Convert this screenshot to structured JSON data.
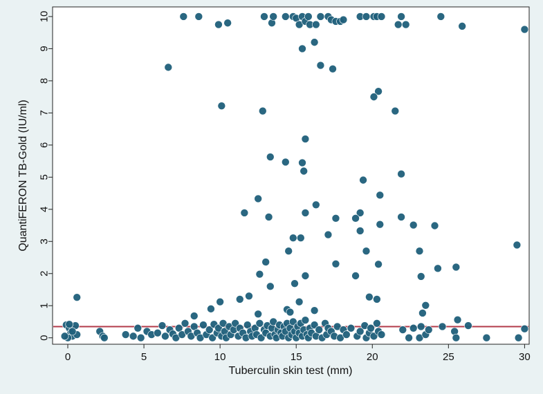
{
  "chart_data": {
    "type": "scatter",
    "title": "",
    "xlabel": "Tuberculin skin test (mm)",
    "ylabel": "QuantiFERON TB-Gold (IU/ml)",
    "xlim": [
      -1,
      30.3
    ],
    "ylim": [
      -0.2,
      10.3
    ],
    "xticks": [
      0,
      5,
      10,
      15,
      20,
      25,
      30
    ],
    "yticks": [
      0,
      1,
      2,
      3,
      4,
      5,
      6,
      7,
      8,
      9,
      10
    ],
    "reference_line": {
      "y": 0.35,
      "color": "#b23a48"
    },
    "grid": false,
    "legend": "none",
    "colors": {
      "marker": "#1f5f7a",
      "plot_bg": "#ffffff",
      "page_bg": "#eaf2f3"
    },
    "points": [
      [
        7.6,
        10.0
      ],
      [
        8.6,
        10.0
      ],
      [
        9.9,
        9.75
      ],
      [
        10.5,
        9.8
      ],
      [
        12.9,
        10.0
      ],
      [
        13.4,
        9.8
      ],
      [
        13.5,
        10.0
      ],
      [
        14.3,
        10.0
      ],
      [
        14.8,
        10.0
      ],
      [
        15.0,
        9.95
      ],
      [
        15.2,
        9.75
      ],
      [
        15.4,
        10.0
      ],
      [
        15.6,
        9.85
      ],
      [
        15.8,
        10.0
      ],
      [
        15.9,
        9.75
      ],
      [
        16.3,
        9.75
      ],
      [
        16.6,
        10.0
      ],
      [
        17.1,
        10.0
      ],
      [
        17.3,
        9.9
      ],
      [
        17.6,
        9.85
      ],
      [
        17.9,
        9.85
      ],
      [
        18.1,
        9.9
      ],
      [
        19.2,
        10.0
      ],
      [
        19.6,
        10.0
      ],
      [
        20.1,
        10.0
      ],
      [
        20.3,
        10.0
      ],
      [
        20.6,
        10.0
      ],
      [
        21.7,
        9.75
      ],
      [
        21.9,
        10.0
      ],
      [
        22.2,
        9.75
      ],
      [
        24.5,
        10.0
      ],
      [
        25.9,
        9.7
      ],
      [
        30.0,
        9.6
      ],
      [
        6.6,
        8.42
      ],
      [
        15.4,
        9.0
      ],
      [
        16.2,
        9.2
      ],
      [
        16.6,
        8.48
      ],
      [
        17.4,
        8.37
      ],
      [
        10.1,
        7.22
      ],
      [
        12.8,
        7.06
      ],
      [
        20.4,
        7.67
      ],
      [
        20.1,
        7.5
      ],
      [
        21.5,
        7.06
      ],
      [
        15.6,
        6.19
      ],
      [
        13.3,
        5.63
      ],
      [
        14.3,
        5.47
      ],
      [
        15.4,
        5.45
      ],
      [
        15.5,
        5.19
      ],
      [
        21.9,
        5.1
      ],
      [
        19.4,
        4.91
      ],
      [
        20.5,
        4.44
      ],
      [
        12.5,
        4.33
      ],
      [
        16.3,
        4.14
      ],
      [
        11.6,
        3.89
      ],
      [
        15.6,
        3.89
      ],
      [
        19.2,
        3.89
      ],
      [
        13.2,
        3.76
      ],
      [
        17.6,
        3.72
      ],
      [
        18.9,
        3.72
      ],
      [
        21.9,
        3.76
      ],
      [
        22.7,
        3.51
      ],
      [
        24.1,
        3.49
      ],
      [
        20.5,
        3.53
      ],
      [
        19.2,
        3.33
      ],
      [
        17.1,
        3.21
      ],
      [
        14.8,
        3.11
      ],
      [
        15.3,
        3.11
      ],
      [
        14.5,
        2.7
      ],
      [
        19.6,
        2.7
      ],
      [
        23.1,
        2.7
      ],
      [
        29.5,
        2.89
      ],
      [
        12.6,
        1.98
      ],
      [
        13.0,
        2.36
      ],
      [
        17.6,
        2.3
      ],
      [
        18.9,
        1.93
      ],
      [
        15.6,
        1.93
      ],
      [
        20.4,
        2.29
      ],
      [
        24.3,
        2.16
      ],
      [
        25.5,
        2.2
      ],
      [
        23.2,
        1.91
      ],
      [
        14.9,
        1.69
      ],
      [
        13.3,
        1.6
      ],
      [
        11.3,
        1.2
      ],
      [
        11.9,
        1.3
      ],
      [
        10.0,
        1.12
      ],
      [
        15.2,
        1.12
      ],
      [
        19.8,
        1.27
      ],
      [
        20.3,
        1.2
      ],
      [
        23.5,
        1.01
      ],
      [
        9.4,
        0.9
      ],
      [
        14.4,
        0.88
      ],
      [
        14.6,
        0.8
      ],
      [
        16.2,
        0.85
      ],
      [
        23.3,
        0.77
      ],
      [
        8.3,
        0.68
      ],
      [
        12.5,
        0.74
      ],
      [
        25.6,
        0.56
      ],
      [
        0.6,
        1.26
      ],
      [
        -0.1,
        0.4
      ],
      [
        0.1,
        0.3
      ],
      [
        0.2,
        0.15
      ],
      [
        0.3,
        0.05
      ],
      [
        0.5,
        0.38
      ],
      [
        0.6,
        0.1
      ],
      [
        0.0,
        0.0
      ],
      [
        -0.2,
        0.05
      ],
      [
        0.3,
        0.2
      ],
      [
        0.1,
        0.42
      ],
      [
        2.1,
        0.2
      ],
      [
        2.3,
        0.05
      ],
      [
        2.4,
        0.0
      ],
      [
        3.8,
        0.1
      ],
      [
        4.3,
        0.05
      ],
      [
        4.6,
        0.3
      ],
      [
        4.8,
        0.0
      ],
      [
        5.2,
        0.2
      ],
      [
        5.5,
        0.1
      ],
      [
        5.9,
        0.15
      ],
      [
        6.2,
        0.38
      ],
      [
        6.4,
        0.05
      ],
      [
        6.7,
        0.25
      ],
      [
        6.9,
        0.12
      ],
      [
        7.1,
        0.0
      ],
      [
        7.3,
        0.3
      ],
      [
        7.5,
        0.1
      ],
      [
        7.7,
        0.45
      ],
      [
        7.9,
        0.2
      ],
      [
        8.1,
        0.05
      ],
      [
        8.3,
        0.35
      ],
      [
        8.5,
        0.15
      ],
      [
        8.7,
        0.0
      ],
      [
        8.9,
        0.4
      ],
      [
        9.1,
        0.1
      ],
      [
        9.3,
        0.25
      ],
      [
        9.5,
        0.0
      ],
      [
        9.6,
        0.42
      ],
      [
        9.8,
        0.15
      ],
      [
        9.9,
        0.3
      ],
      [
        10.1,
        0.05
      ],
      [
        10.2,
        0.45
      ],
      [
        10.3,
        0.2
      ],
      [
        10.4,
        0.0
      ],
      [
        10.6,
        0.35
      ],
      [
        10.7,
        0.1
      ],
      [
        10.9,
        0.25
      ],
      [
        11.0,
        0.45
      ],
      [
        11.2,
        0.05
      ],
      [
        11.3,
        0.3
      ],
      [
        11.5,
        0.15
      ],
      [
        11.7,
        0.0
      ],
      [
        11.8,
        0.4
      ],
      [
        12.0,
        0.2
      ],
      [
        12.1,
        0.05
      ],
      [
        12.3,
        0.3
      ],
      [
        12.4,
        0.1
      ],
      [
        12.6,
        0.45
      ],
      [
        12.7,
        0.0
      ],
      [
        12.9,
        0.25
      ],
      [
        13.0,
        0.15
      ],
      [
        13.1,
        0.38
      ],
      [
        13.3,
        0.05
      ],
      [
        13.4,
        0.3
      ],
      [
        13.5,
        0.5
      ],
      [
        13.6,
        0.1
      ],
      [
        13.7,
        0.0
      ],
      [
        13.8,
        0.25
      ],
      [
        13.9,
        0.4
      ],
      [
        14.0,
        0.15
      ],
      [
        14.1,
        0.05
      ],
      [
        14.2,
        0.35
      ],
      [
        14.3,
        0.2
      ],
      [
        14.4,
        0.45
      ],
      [
        14.5,
        0.0
      ],
      [
        14.6,
        0.3
      ],
      [
        14.7,
        0.1
      ],
      [
        14.8,
        0.5
      ],
      [
        14.9,
        0.2
      ],
      [
        15.0,
        0.0
      ],
      [
        15.1,
        0.35
      ],
      [
        15.2,
        0.15
      ],
      [
        15.3,
        0.45
      ],
      [
        15.4,
        0.05
      ],
      [
        15.5,
        0.25
      ],
      [
        15.6,
        0.55
      ],
      [
        15.7,
        0.1
      ],
      [
        15.8,
        0.0
      ],
      [
        15.9,
        0.3
      ],
      [
        16.0,
        0.15
      ],
      [
        16.2,
        0.4
      ],
      [
        16.3,
        0.05
      ],
      [
        16.5,
        0.25
      ],
      [
        16.7,
        0.0
      ],
      [
        16.9,
        0.45
      ],
      [
        17.0,
        0.1
      ],
      [
        17.1,
        0.3
      ],
      [
        17.3,
        0.2
      ],
      [
        17.5,
        0.05
      ],
      [
        17.7,
        0.35
      ],
      [
        17.9,
        0.0
      ],
      [
        18.1,
        0.25
      ],
      [
        18.3,
        0.1
      ],
      [
        18.6,
        0.3
      ],
      [
        19.0,
        0.05
      ],
      [
        19.2,
        0.2
      ],
      [
        19.5,
        0.38
      ],
      [
        19.6,
        0.0
      ],
      [
        19.8,
        0.15
      ],
      [
        19.9,
        0.3
      ],
      [
        20.1,
        0.05
      ],
      [
        20.3,
        0.45
      ],
      [
        20.4,
        0.2
      ],
      [
        20.6,
        0.1
      ],
      [
        22.0,
        0.25
      ],
      [
        22.4,
        0.0
      ],
      [
        22.7,
        0.3
      ],
      [
        23.1,
        0.0
      ],
      [
        23.2,
        0.35
      ],
      [
        23.5,
        0.1
      ],
      [
        23.7,
        0.25
      ],
      [
        24.6,
        0.35
      ],
      [
        25.4,
        0.2
      ],
      [
        25.5,
        0.0
      ],
      [
        26.3,
        0.38
      ],
      [
        27.5,
        0.0
      ],
      [
        29.6,
        0.0
      ],
      [
        30.0,
        0.28
      ]
    ]
  }
}
